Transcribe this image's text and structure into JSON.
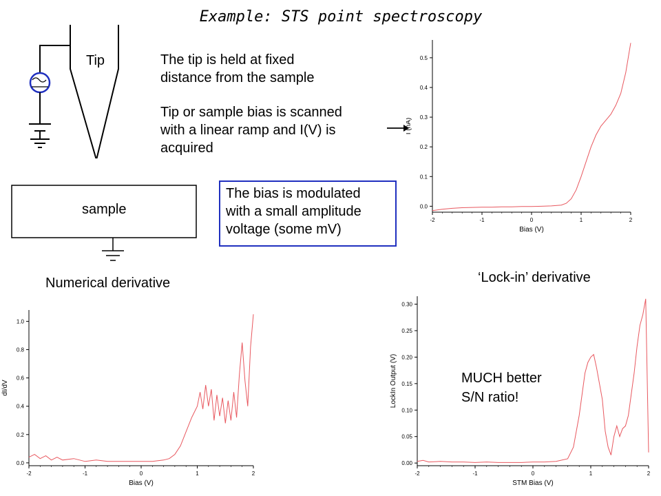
{
  "title": "Example: STS point spectroscopy",
  "schematic": {
    "tip_label": "Tip",
    "sample_label": "sample"
  },
  "text": {
    "line1": "The tip is held at fixed",
    "line2": "distance from the sample",
    "line3": "Tip or sample bias is scanned",
    "line4": "with a linear ramp and I(V) is",
    "line5": "acquired",
    "box1": "The bias is modulated",
    "box2": "with a small amplitude",
    "box3": "voltage (some mV)",
    "numerical_label": "Numerical derivative",
    "lockin_label": "‘Lock-in’ derivative",
    "note1": "MUCH better",
    "note2": "S/N ratio!"
  },
  "colors": {
    "trace": "#e8575e",
    "box_border": "#1f2fbf",
    "source": "#1f2fbf"
  },
  "chart_data": [
    {
      "type": "line",
      "xlabel": "Bias (V)",
      "ylabel": "I (nA)",
      "xlim": [
        -2,
        2
      ],
      "ylim": [
        -0.02,
        0.56
      ],
      "x_ticks": [
        -2,
        -1,
        0,
        1,
        2
      ],
      "x_tick_labels": [
        "-2",
        "-1",
        "0",
        "1",
        "2"
      ],
      "y_ticks": [
        0.0,
        0.1,
        0.2,
        0.3,
        0.4,
        0.5
      ],
      "y_tick_labels": [
        "0.0",
        "0.1",
        "0.2",
        "0.3",
        "0.4",
        "0.5"
      ],
      "series": [
        {
          "x": [
            -2,
            -1.8,
            -1.6,
            -1.4,
            -1.2,
            -1,
            -0.8,
            -0.6,
            -0.4,
            -0.2,
            0,
            0.2,
            0.4,
            0.6,
            0.7,
            0.8,
            0.9,
            1.0,
            1.1,
            1.2,
            1.3,
            1.4,
            1.5,
            1.6,
            1.7,
            1.8,
            1.9,
            2.0
          ],
          "y": [
            -0.015,
            -0.01,
            -0.007,
            -0.005,
            -0.004,
            -0.003,
            -0.003,
            -0.002,
            -0.002,
            -0.001,
            -0.001,
            0.0,
            0.001,
            0.004,
            0.01,
            0.025,
            0.055,
            0.1,
            0.15,
            0.2,
            0.24,
            0.27,
            0.29,
            0.31,
            0.34,
            0.38,
            0.45,
            0.55
          ]
        }
      ]
    },
    {
      "type": "line",
      "xlabel": "Bias (V)",
      "ylabel": "dI/dV",
      "xlim": [
        -2,
        2
      ],
      "ylim": [
        -0.02,
        1.08
      ],
      "x_ticks": [
        -2,
        -1,
        0,
        1,
        2
      ],
      "x_tick_labels": [
        "-2",
        "-1",
        "0",
        "1",
        "2"
      ],
      "y_ticks": [
        0.0,
        0.2,
        0.4,
        0.6,
        0.8,
        1.0
      ],
      "y_tick_labels": [
        "0.0",
        "0.2",
        "0.4",
        "0.6",
        "0.8",
        "1.0"
      ],
      "series": [
        {
          "x": [
            -2,
            -1.9,
            -1.8,
            -1.7,
            -1.6,
            -1.5,
            -1.4,
            -1.2,
            -1.0,
            -0.8,
            -0.6,
            -0.4,
            -0.2,
            0,
            0.2,
            0.4,
            0.5,
            0.6,
            0.7,
            0.8,
            0.9,
            1.0,
            1.05,
            1.1,
            1.15,
            1.2,
            1.25,
            1.3,
            1.35,
            1.4,
            1.45,
            1.5,
            1.55,
            1.6,
            1.65,
            1.7,
            1.75,
            1.8,
            1.85,
            1.9,
            1.95,
            2.0
          ],
          "y": [
            0.04,
            0.06,
            0.03,
            0.05,
            0.02,
            0.04,
            0.02,
            0.03,
            0.01,
            0.02,
            0.01,
            0.01,
            0.01,
            0.01,
            0.01,
            0.02,
            0.03,
            0.06,
            0.12,
            0.22,
            0.32,
            0.4,
            0.5,
            0.38,
            0.55,
            0.4,
            0.52,
            0.3,
            0.48,
            0.33,
            0.46,
            0.28,
            0.44,
            0.3,
            0.5,
            0.32,
            0.62,
            0.85,
            0.58,
            0.4,
            0.82,
            1.05
          ]
        }
      ]
    },
    {
      "type": "line",
      "xlabel": "STM Bias (V)",
      "ylabel": "LockIn Output (V)",
      "xlim": [
        -2,
        2
      ],
      "ylim": [
        -0.005,
        0.315
      ],
      "x_ticks": [
        -2,
        -1,
        0,
        1,
        2
      ],
      "x_tick_labels": [
        "-2",
        "-1",
        "0",
        "1",
        "2"
      ],
      "y_ticks": [
        0.0,
        0.05,
        0.1,
        0.15,
        0.2,
        0.25,
        0.3
      ],
      "y_tick_labels": [
        "0.00",
        "0.05",
        "0.10",
        "0.15",
        "0.20",
        "0.25",
        "0.30"
      ],
      "series": [
        {
          "x": [
            -2,
            -1.9,
            -1.8,
            -1.6,
            -1.4,
            -1.2,
            -1.0,
            -0.8,
            -0.6,
            -0.4,
            -0.2,
            0,
            0.2,
            0.4,
            0.6,
            0.7,
            0.8,
            0.9,
            0.95,
            1.0,
            1.05,
            1.1,
            1.15,
            1.2,
            1.25,
            1.3,
            1.35,
            1.4,
            1.45,
            1.5,
            1.55,
            1.6,
            1.65,
            1.7,
            1.75,
            1.8,
            1.85,
            1.9,
            1.95,
            2.0
          ],
          "y": [
            0.003,
            0.005,
            0.002,
            0.003,
            0.002,
            0.002,
            0.001,
            0.002,
            0.001,
            0.001,
            0.001,
            0.002,
            0.002,
            0.003,
            0.008,
            0.03,
            0.09,
            0.17,
            0.19,
            0.2,
            0.205,
            0.18,
            0.15,
            0.12,
            0.06,
            0.03,
            0.015,
            0.05,
            0.07,
            0.05,
            0.065,
            0.07,
            0.09,
            0.13,
            0.17,
            0.22,
            0.26,
            0.28,
            0.31,
            0.02
          ]
        }
      ]
    }
  ]
}
